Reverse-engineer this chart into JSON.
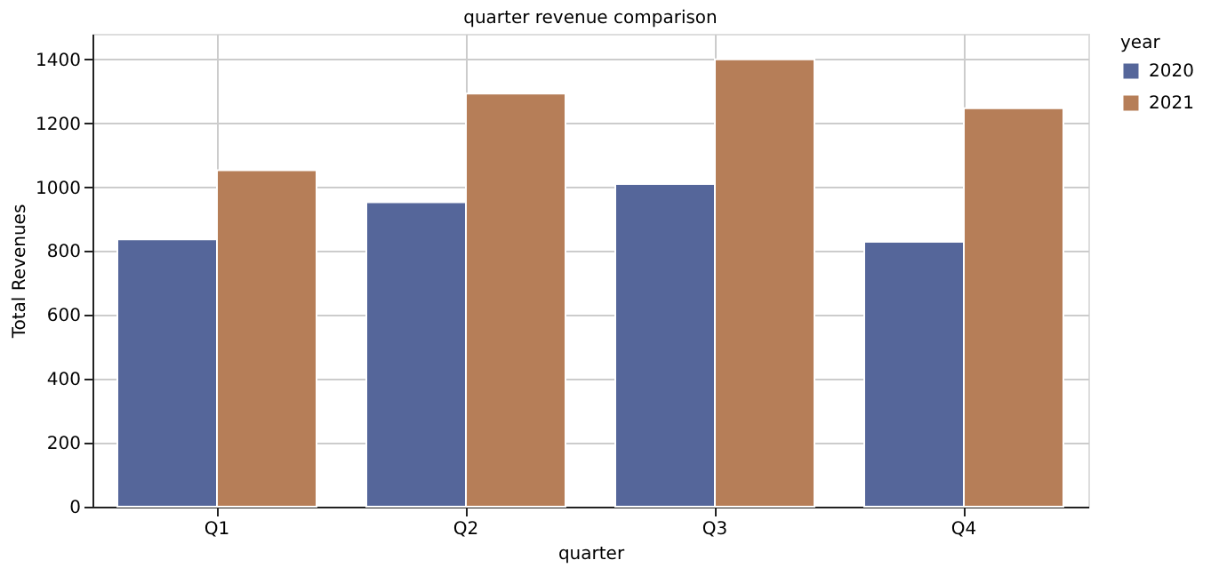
{
  "chart_data": {
    "type": "bar",
    "title": "quarter revenue comparison",
    "xlabel": "quarter",
    "ylabel": "Total Revenues",
    "legend_title": "year",
    "categories": [
      "Q1",
      "Q2",
      "Q3",
      "Q4"
    ],
    "series": [
      {
        "name": "2020",
        "color": "#55669a",
        "values": [
          837,
          953,
          1010,
          829
        ]
      },
      {
        "name": "2021",
        "color": "#b67e58",
        "values": [
          1053,
          1293,
          1400,
          1247
        ]
      }
    ],
    "ylim": [
      0,
      1480
    ],
    "yticks": [
      0,
      200,
      400,
      600,
      800,
      1000,
      1200,
      1400
    ],
    "grid": true,
    "legend": "right"
  }
}
